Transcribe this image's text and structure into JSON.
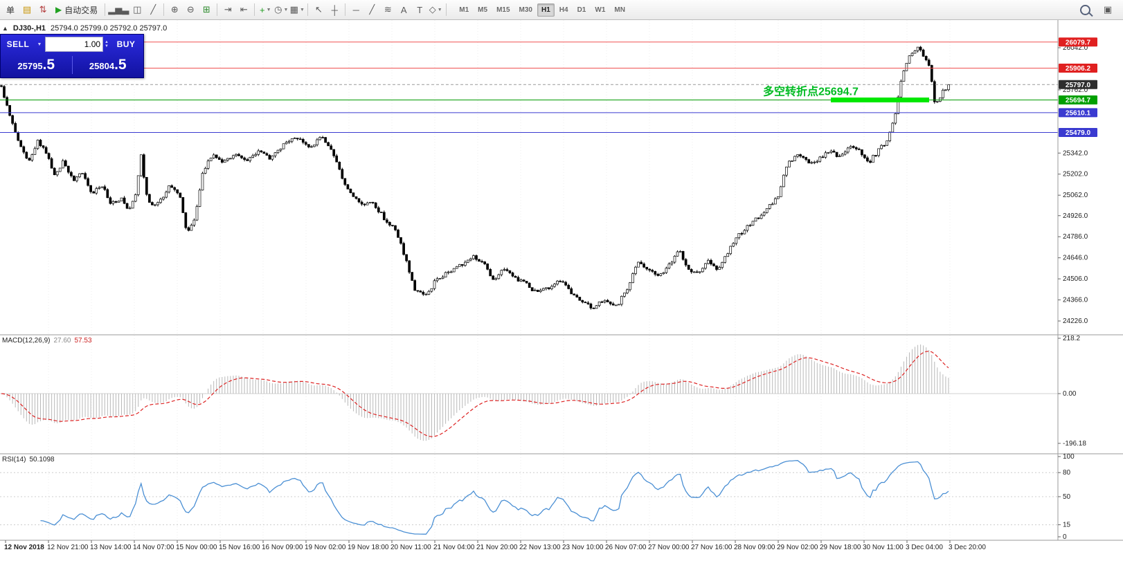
{
  "toolbar": {
    "items": [
      {
        "kind": "button",
        "name": "new-order-button",
        "label": "单"
      },
      {
        "kind": "icon",
        "name": "charts-profile-icon",
        "glyph": "▤",
        "color": "#c8960c"
      },
      {
        "kind": "icon",
        "name": "tick-chart-icon",
        "glyph": "⇅",
        "color": "#b23a3a"
      },
      {
        "kind": "button",
        "name": "autotrading-button",
        "glyph": "▶",
        "color": "#21a121",
        "label": "自动交易"
      },
      {
        "kind": "sep"
      },
      {
        "kind": "icon",
        "name": "bar-chart-icon",
        "glyph": "▂▅▃"
      },
      {
        "kind": "icon",
        "name": "candlestick-chart-icon",
        "glyph": "◫"
      },
      {
        "kind": "icon",
        "name": "line-chart-icon",
        "glyph": "╱"
      },
      {
        "kind": "sep"
      },
      {
        "kind": "icon",
        "name": "zoom-in-button",
        "glyph": "⊕"
      },
      {
        "kind": "icon",
        "name": "zoom-out-button",
        "glyph": "⊖"
      },
      {
        "kind": "icon",
        "name": "tile-windows-icon",
        "glyph": "⊞",
        "color": "#2e8b2e"
      },
      {
        "kind": "sep"
      },
      {
        "kind": "icon",
        "name": "auto-scroll-icon",
        "glyph": "⇥"
      },
      {
        "kind": "icon",
        "name": "chart-shift-icon",
        "glyph": "⇤"
      },
      {
        "kind": "sep"
      },
      {
        "kind": "icon",
        "name": "indicators-button",
        "glyph": "+",
        "color": "#1f9d1f",
        "dropdown": true
      },
      {
        "kind": "icon",
        "name": "periods-button",
        "glyph": "◷",
        "dropdown": true
      },
      {
        "kind": "icon",
        "name": "templates-button",
        "glyph": "▦",
        "dropdown": true
      },
      {
        "kind": "sep"
      },
      {
        "kind": "icon",
        "name": "cursor-tool",
        "glyph": "↖"
      },
      {
        "kind": "icon",
        "name": "crosshair-tool",
        "glyph": "┼"
      },
      {
        "kind": "sep"
      },
      {
        "kind": "icon",
        "name": "horizontal-line-tool",
        "glyph": "─"
      },
      {
        "kind": "icon",
        "name": "trendline-tool",
        "glyph": "╱"
      },
      {
        "kind": "icon",
        "name": "fibonacci-tool",
        "glyph": "≋"
      },
      {
        "kind": "icon",
        "name": "text-tool",
        "glyph": "A"
      },
      {
        "kind": "icon",
        "name": "label-tool",
        "glyph": "T"
      },
      {
        "kind": "icon",
        "name": "shapes-button",
        "glyph": "◇",
        "dropdown": true
      },
      {
        "kind": "sep"
      },
      {
        "kind": "tf",
        "name": "timeframe-group",
        "items": [
          "M1",
          "M5",
          "M15",
          "M30",
          "H1",
          "H4",
          "D1",
          "W1",
          "MN"
        ],
        "active": "H1"
      }
    ],
    "right_items": [
      {
        "kind": "search",
        "name": "symbol-search-button"
      },
      {
        "kind": "icon",
        "name": "new-chart-window-icon",
        "glyph": "▣"
      }
    ]
  },
  "symbol_bar": {
    "symbol": "DJ30-,H1",
    "ohlc": "25794.0 25799.0 25792.0 25797.0"
  },
  "one_click": {
    "sell_label": "SELL",
    "buy_label": "BUY",
    "volume": "1.00",
    "sell_price_base": "25795",
    "sell_price_frac": ".5",
    "buy_price_base": "25804",
    "buy_price_frac": ".5"
  },
  "annotation": {
    "text": "多空转折点25694.7",
    "color": "#00bb22",
    "highlight_color": "#00e800"
  },
  "indicators": {
    "macd": {
      "title": "MACD(12,26,9)",
      "main_value": "27.60",
      "signal_value": "57.53",
      "axis_labels": [
        "218.2",
        "0.00",
        "-196.18"
      ]
    },
    "rsi": {
      "title": "RSI(14)",
      "value": "50.1098",
      "axis_labels": [
        "100",
        "80",
        "50",
        "15",
        "0"
      ],
      "levels": [
        80,
        50,
        15
      ]
    }
  },
  "chart_data": {
    "type": "candlestick",
    "title": "DJ30-,H1",
    "symbol": "DJ30-",
    "timeframe": "H1",
    "last_ohlc": {
      "open": 25794.0,
      "high": 25799.0,
      "low": 25792.0,
      "close": 25797.0
    },
    "last_price": 25797.0,
    "ylim": [
      24190,
      26170
    ],
    "y_ticks": [
      26042,
      25762,
      25342,
      25202,
      25062,
      24926,
      24786,
      24646,
      24506,
      24366,
      24226
    ],
    "x_labels": [
      "12 Nov 2018",
      "12 Nov 21:00",
      "13 Nov 14:00",
      "14 Nov 07:00",
      "15 Nov 00:00",
      "15 Nov 16:00",
      "16 Nov 09:00",
      "19 Nov 02:00",
      "19 Nov 18:00",
      "20 Nov 11:00",
      "21 Nov 04:00",
      "21 Nov 20:00",
      "22 Nov 13:00",
      "23 Nov 10:00",
      "26 Nov 07:00",
      "27 Nov 00:00",
      "27 Nov 16:00",
      "28 Nov 09:00",
      "29 Nov 02:00",
      "29 Nov 18:00",
      "30 Nov 11:00",
      "3 Dec 04:00",
      "3 Dec 20:00"
    ],
    "price_levels": [
      {
        "price": 26079.7,
        "color": "#f05050",
        "style": "solid",
        "badge": "#e02020"
      },
      {
        "price": 25906.2,
        "color": "#f05050",
        "style": "solid",
        "badge": "#e02020"
      },
      {
        "price": 25797.0,
        "color": "#999999",
        "style": "dashed",
        "badge": "#2e2e2e"
      },
      {
        "price": 25694.7,
        "color": "#009900",
        "style": "solid",
        "badge": "#00a000",
        "highlight": true
      },
      {
        "price": 25610.1,
        "color": "#3a3ad0",
        "style": "solid",
        "badge": "#3a3ad0"
      },
      {
        "price": 25479.0,
        "color": "#3a3ad0",
        "style": "solid",
        "badge": "#3a3ad0"
      }
    ],
    "num_candles": 340,
    "price_path_anchors": [
      [
        0.0,
        25790
      ],
      [
        0.008,
        25600
      ],
      [
        0.02,
        25380
      ],
      [
        0.03,
        25280
      ],
      [
        0.038,
        25430
      ],
      [
        0.048,
        25340
      ],
      [
        0.056,
        25190
      ],
      [
        0.066,
        25290
      ],
      [
        0.076,
        25150
      ],
      [
        0.086,
        25220
      ],
      [
        0.096,
        25070
      ],
      [
        0.106,
        25130
      ],
      [
        0.116,
        25000
      ],
      [
        0.126,
        25040
      ],
      [
        0.134,
        24960
      ],
      [
        0.142,
        25060
      ],
      [
        0.148,
        25370
      ],
      [
        0.152,
        25070
      ],
      [
        0.16,
        24980
      ],
      [
        0.17,
        25040
      ],
      [
        0.178,
        25130
      ],
      [
        0.188,
        25060
      ],
      [
        0.196,
        24800
      ],
      [
        0.204,
        24910
      ],
      [
        0.212,
        25190
      ],
      [
        0.222,
        25330
      ],
      [
        0.234,
        25270
      ],
      [
        0.246,
        25340
      ],
      [
        0.258,
        25290
      ],
      [
        0.27,
        25350
      ],
      [
        0.284,
        25310
      ],
      [
        0.298,
        25400
      ],
      [
        0.312,
        25440
      ],
      [
        0.326,
        25390
      ],
      [
        0.34,
        25450
      ],
      [
        0.352,
        25310
      ],
      [
        0.362,
        25150
      ],
      [
        0.372,
        25060
      ],
      [
        0.382,
        24990
      ],
      [
        0.392,
        25020
      ],
      [
        0.404,
        24910
      ],
      [
        0.416,
        24830
      ],
      [
        0.426,
        24660
      ],
      [
        0.436,
        24430
      ],
      [
        0.448,
        24390
      ],
      [
        0.46,
        24510
      ],
      [
        0.472,
        24550
      ],
      [
        0.484,
        24590
      ],
      [
        0.498,
        24650
      ],
      [
        0.51,
        24610
      ],
      [
        0.52,
        24490
      ],
      [
        0.53,
        24570
      ],
      [
        0.542,
        24510
      ],
      [
        0.554,
        24470
      ],
      [
        0.566,
        24410
      ],
      [
        0.578,
        24450
      ],
      [
        0.59,
        24490
      ],
      [
        0.602,
        24410
      ],
      [
        0.614,
        24350
      ],
      [
        0.626,
        24310
      ],
      [
        0.636,
        24370
      ],
      [
        0.648,
        24310
      ],
      [
        0.66,
        24430
      ],
      [
        0.672,
        24610
      ],
      [
        0.684,
        24570
      ],
      [
        0.696,
        24530
      ],
      [
        0.706,
        24610
      ],
      [
        0.716,
        24690
      ],
      [
        0.726,
        24570
      ],
      [
        0.736,
        24540
      ],
      [
        0.746,
        24620
      ],
      [
        0.756,
        24560
      ],
      [
        0.766,
        24670
      ],
      [
        0.776,
        24780
      ],
      [
        0.786,
        24840
      ],
      [
        0.798,
        24910
      ],
      [
        0.81,
        24980
      ],
      [
        0.82,
        25060
      ],
      [
        0.83,
        25280
      ],
      [
        0.842,
        25330
      ],
      [
        0.854,
        25270
      ],
      [
        0.864,
        25310
      ],
      [
        0.874,
        25360
      ],
      [
        0.886,
        25310
      ],
      [
        0.896,
        25390
      ],
      [
        0.906,
        25360
      ],
      [
        0.916,
        25280
      ],
      [
        0.926,
        25360
      ],
      [
        0.936,
        25430
      ],
      [
        0.944,
        25610
      ],
      [
        0.952,
        25890
      ],
      [
        0.96,
        26000
      ],
      [
        0.968,
        26050
      ],
      [
        0.974,
        25990
      ],
      [
        0.98,
        25910
      ],
      [
        0.986,
        25650
      ],
      [
        0.992,
        25730
      ],
      [
        1.0,
        25797
      ]
    ],
    "indicator_panels": [
      {
        "type": "macd",
        "params": [
          12,
          26,
          9
        ],
        "current_values": [
          27.6,
          57.53
        ],
        "axis": [
          218.2,
          0.0,
          -196.18
        ]
      },
      {
        "type": "rsi",
        "params": [
          14
        ],
        "current_value": 50.1098,
        "axis": [
          100,
          80,
          50,
          15,
          0
        ]
      }
    ]
  }
}
